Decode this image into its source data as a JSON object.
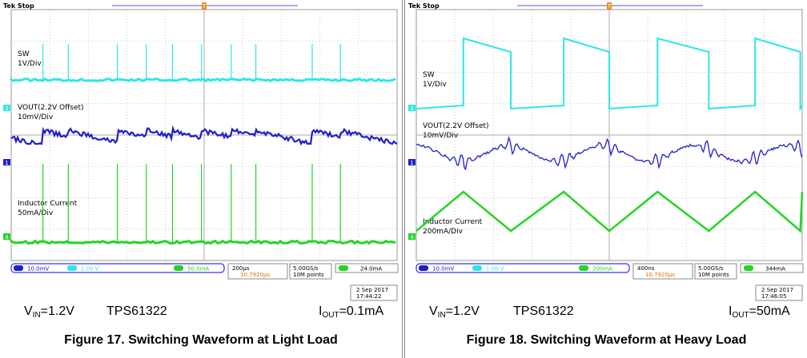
{
  "colors": {
    "sw": "#2ee6e6",
    "vout": "#2020c8",
    "il": "#22d622",
    "grid": "#c8c8c8",
    "bezel": "#0000ff"
  },
  "chart_data": [
    {
      "type": "line",
      "status": "Tek Stop",
      "trigger_marker": "T",
      "traces": [
        {
          "name": "SW",
          "scale": "1V/Div",
          "ch": "2",
          "description": "flat baseline with narrow periodic spikes"
        },
        {
          "name": "VOUT(2.2V Offset)",
          "scale": "10mV/Div",
          "ch": "1",
          "description": "sawtooth ripple"
        },
        {
          "name": "Inductor Current",
          "scale": "50mA/Div",
          "ch": "4",
          "description": "flat baseline with narrow periodic spikes"
        }
      ],
      "pulse_times_div": [
        0.82,
        1.48,
        2.75,
        3.5,
        4.18,
        4.93,
        5.7,
        6.34,
        7.8,
        8.53
      ],
      "readouts": {
        "ch1_scale": "10.0mV",
        "ch2_scale": "1.00 V",
        "ch4_scale": "50.0mA",
        "timebase": "200µs",
        "delay": "10.7920µs",
        "sample_rate": "5.00GS/s",
        "record_length": "10M points",
        "trig_ch": "4",
        "trig_level": "24.0mA",
        "date": "2 Sep  2017",
        "time": "17:44:22"
      },
      "footer": {
        "vin_prefix": "V",
        "vin_sub": "IN",
        "vin_value": "=1.2V",
        "device": "TPS61322",
        "iout_prefix": "I",
        "iout_sub": "OUT",
        "iout_value": "=0.1mA"
      },
      "caption": "Figure 17. Switching Waveform at Light Load"
    },
    {
      "type": "line",
      "status": "Tek Stop",
      "trigger_marker": "T",
      "traces": [
        {
          "name": "SW",
          "scale": "1V/Div",
          "ch": "2",
          "description": "square wave"
        },
        {
          "name": "VOUT(2.2V Offset)",
          "scale": "10mV/Div",
          "ch": "1",
          "description": "ripple with ringing at edges"
        },
        {
          "name": "Inductor Current",
          "scale": "200mA/Div",
          "ch": "4",
          "description": "triangular wave"
        }
      ],
      "switching_edges_div": [
        1.22,
        2.45,
        3.82,
        5.0,
        6.25,
        7.58,
        8.78,
        9.95
      ],
      "readouts": {
        "ch1_scale": "10.0mV",
        "ch2_scale": "1.00 V",
        "ch4_scale": "200mA",
        "timebase": "400ns",
        "delay": "10.7920µs",
        "sample_rate": "5.00GS/s",
        "record_length": "10M points",
        "trig_ch": "4",
        "trig_level": "344mA",
        "date": "2 Sep  2017",
        "time": "17:46:05"
      },
      "footer": {
        "vin_prefix": "V",
        "vin_sub": "IN",
        "vin_value": "=1.2V",
        "device": "TPS61322",
        "iout_prefix": "I",
        "iout_sub": "OUT",
        "iout_value": "=50mA"
      },
      "caption": "Figure 18. Switching Waveform at Heavy Load"
    }
  ]
}
